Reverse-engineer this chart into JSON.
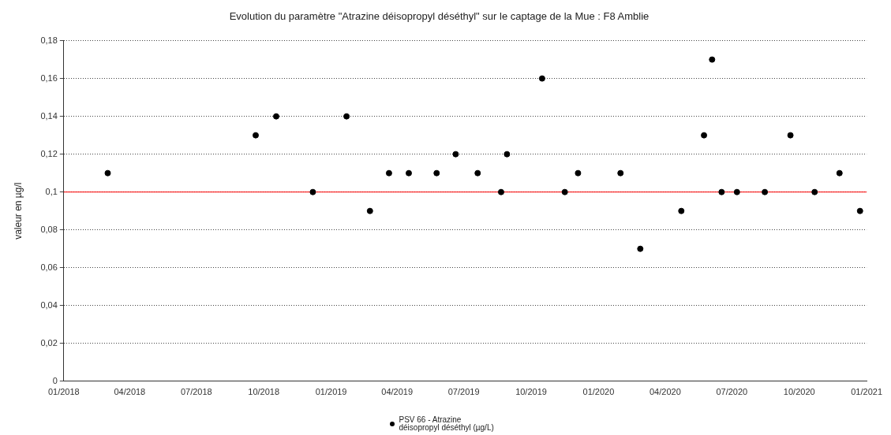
{
  "chart_data": {
    "type": "scatter",
    "title": "Evolution du paramètre \"Atrazine déisopropyl déséthyl\" sur le captage de la Mue : F8 Amblie",
    "ylabel": "valeur en µg/l",
    "series": [
      {
        "name": "PSV 66 - Atrazine déisopropyl déséthyl (µg/L)",
        "color": "#000000",
        "x": [
          "2018-03-02",
          "2018-09-20",
          "2018-10-18",
          "2018-12-07",
          "2019-01-22",
          "2019-02-23",
          "2019-03-21",
          "2019-04-17",
          "2019-05-25",
          "2019-06-20",
          "2019-07-20",
          "2019-08-21",
          "2019-08-29",
          "2019-10-16",
          "2019-11-16",
          "2019-12-04",
          "2020-01-31",
          "2020-02-27",
          "2020-04-23",
          "2020-05-24",
          "2020-06-04",
          "2020-06-17",
          "2020-07-08",
          "2020-08-15",
          "2020-09-19",
          "2020-10-22",
          "2020-11-25",
          "2020-12-23"
        ],
        "values": [
          0.11,
          0.13,
          0.14,
          0.1,
          0.14,
          0.09,
          0.11,
          0.11,
          0.11,
          0.12,
          0.11,
          0.1,
          0.12,
          0.16,
          0.1,
          0.11,
          0.11,
          0.07,
          0.09,
          0.13,
          0.17,
          0.1,
          0.1,
          0.1,
          0.13,
          0.1,
          0.11,
          0.09
        ]
      }
    ],
    "xlim": [
      "2018-01-01",
      "2021-01-01"
    ],
    "xticks": [
      {
        "value": "2018-01-01",
        "label": "01/2018"
      },
      {
        "value": "2018-04-01",
        "label": "04/2018"
      },
      {
        "value": "2018-07-01",
        "label": "07/2018"
      },
      {
        "value": "2018-10-01",
        "label": "10/2018"
      },
      {
        "value": "2019-01-01",
        "label": "01/2019"
      },
      {
        "value": "2019-04-01",
        "label": "04/2019"
      },
      {
        "value": "2019-07-01",
        "label": "07/2019"
      },
      {
        "value": "2019-10-01",
        "label": "10/2019"
      },
      {
        "value": "2020-01-01",
        "label": "01/2020"
      },
      {
        "value": "2020-04-01",
        "label": "04/2020"
      },
      {
        "value": "2020-07-01",
        "label": "07/2020"
      },
      {
        "value": "2020-10-01",
        "label": "10/2020"
      },
      {
        "value": "2021-01-01",
        "label": "01/2021"
      }
    ],
    "ylim": [
      0,
      0.18
    ],
    "yticks": [
      0,
      {
        "value": 0.02,
        "label": "0,02"
      },
      {
        "value": 0.04,
        "label": "0,04"
      },
      {
        "value": 0.06,
        "label": "0,06"
      },
      {
        "value": 0.08,
        "label": "0,08"
      },
      {
        "value": 0.1,
        "label": "0,1"
      },
      {
        "value": 0.12,
        "label": "0,12"
      },
      {
        "value": 0.14,
        "label": "0,14"
      },
      {
        "value": 0.16,
        "label": "0,16"
      },
      {
        "value": 0.18,
        "label": "0,18"
      }
    ],
    "ref_lines": [
      {
        "axis": "y",
        "value": 0.1,
        "color": "#ff0000"
      }
    ],
    "grid": "y",
    "legend": "bottom",
    "marker": "circle"
  }
}
